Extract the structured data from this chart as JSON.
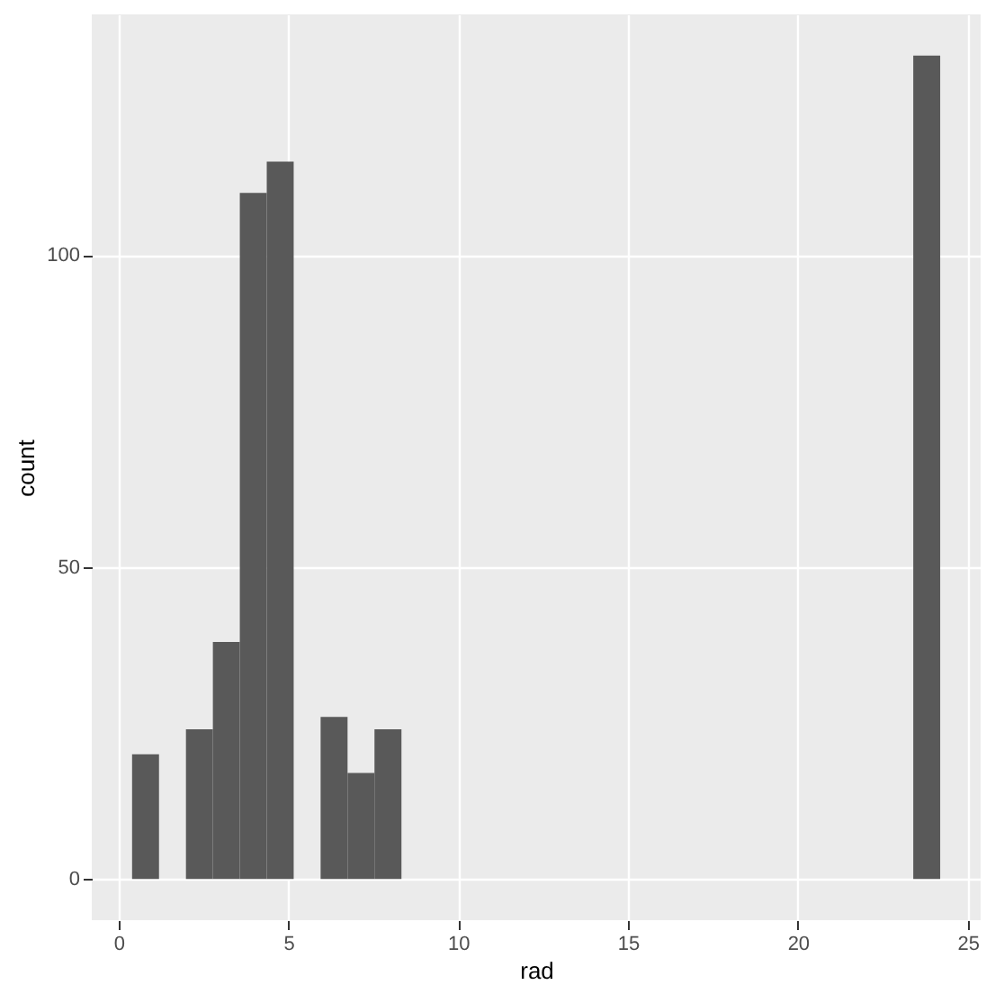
{
  "chart_data": {
    "type": "histogram",
    "xlabel": "rad",
    "ylabel": "count",
    "bins": [
      0.397,
      1.19,
      1.983,
      2.776,
      3.569,
      4.362,
      5.155,
      5.948,
      6.741,
      7.534,
      8.328,
      9.121,
      9.914,
      10.707,
      11.5,
      12.293,
      13.086,
      13.879,
      14.672,
      15.466,
      16.259,
      17.052,
      17.845,
      18.638,
      19.431,
      20.224,
      21.017,
      21.81,
      22.603,
      23.397,
      24.19
    ],
    "values": [
      20,
      0,
      24,
      38,
      110,
      115,
      0,
      26,
      17,
      24,
      0,
      0,
      0,
      0,
      0,
      0,
      0,
      0,
      0,
      0,
      0,
      0,
      0,
      0,
      0,
      0,
      0,
      0,
      0,
      132
    ],
    "color": "#595959",
    "xlim": [
      -0.79,
      25.38
    ],
    "ylim": [
      -6.6,
      138.6
    ],
    "xticks": [
      0,
      5,
      10,
      15,
      20,
      25
    ],
    "yticks": [
      0,
      50,
      100
    ],
    "grid": true
  }
}
